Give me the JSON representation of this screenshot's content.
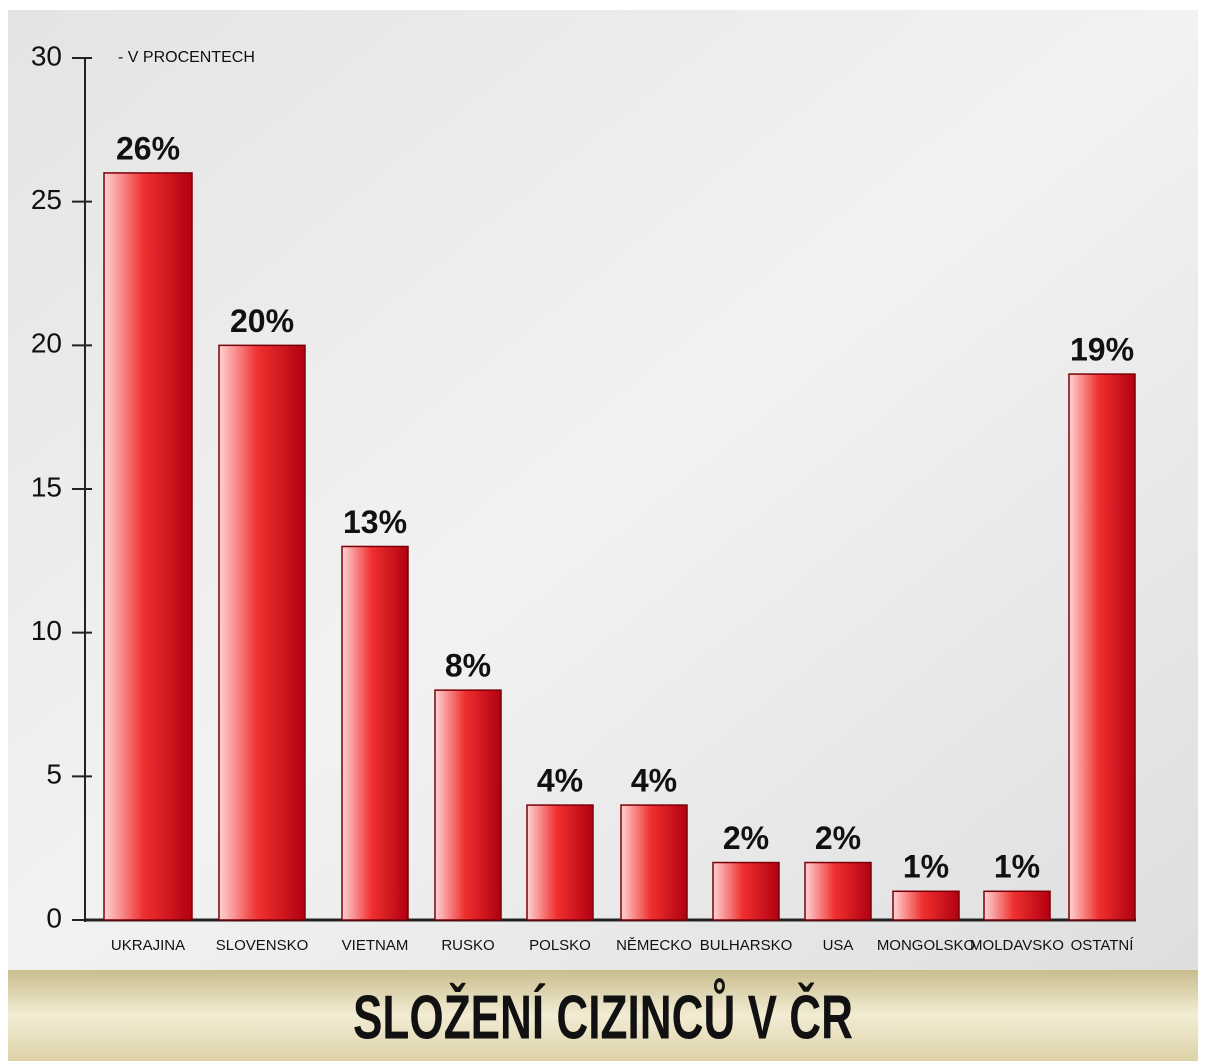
{
  "chart_data": {
    "type": "bar",
    "title": "SLOŽENÍ CIZINCŮ V ČR",
    "annotation": "- V PROCENTECH",
    "categories": [
      "UKRAJINA",
      "SLOVENSKO",
      "VIETNAM",
      "RUSKO",
      "POLSKO",
      "NĚMECKO",
      "BULHARSKO",
      "USA",
      "MONGOLSKO",
      "MOLDAVSKO",
      "OSTATNÍ"
    ],
    "values": [
      26,
      20,
      13,
      8,
      4,
      4,
      2,
      2,
      1,
      1,
      19
    ],
    "value_labels": [
      "26%",
      "20%",
      "13%",
      "8%",
      "4%",
      "4%",
      "2%",
      "2%",
      "1%",
      "1%",
      "19%"
    ],
    "color": "#d0000f",
    "ylim": [
      0,
      30
    ],
    "yticks": [
      0,
      5,
      10,
      15,
      20,
      25,
      30
    ]
  }
}
